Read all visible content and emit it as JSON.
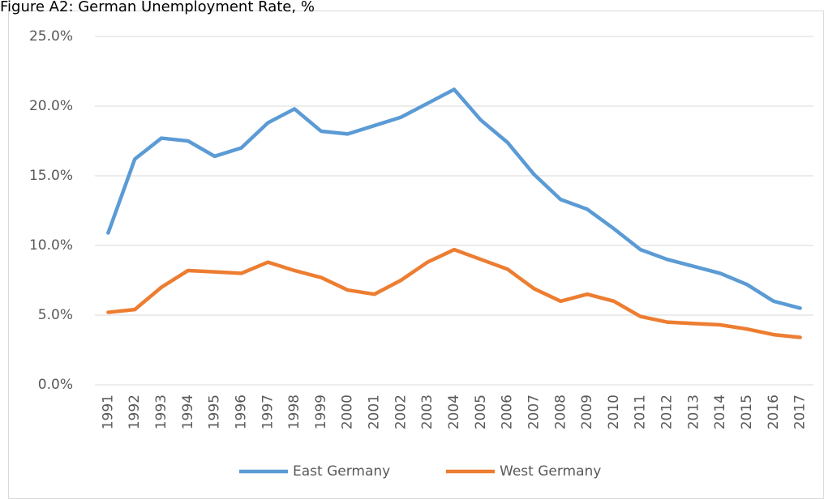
{
  "chart_data": {
    "type": "line",
    "title": "Figure A2: German Unemployment Rate, %",
    "categories": [
      "1991",
      "1992",
      "1993",
      "1994",
      "1995",
      "1996",
      "1997",
      "1998",
      "1999",
      "2000",
      "2001",
      "2002",
      "2003",
      "2004",
      "2005",
      "2006",
      "2007",
      "2008",
      "2009",
      "2010",
      "2011",
      "2012",
      "2013",
      "2014",
      "2015",
      "2016",
      "2017"
    ],
    "series": [
      {
        "name": "East Germany",
        "color": "#5b9bd5",
        "values": [
          10.9,
          16.2,
          17.7,
          17.5,
          16.4,
          17.0,
          18.8,
          19.8,
          18.2,
          18.0,
          18.6,
          19.2,
          20.2,
          21.2,
          19.0,
          17.4,
          15.1,
          13.3,
          12.6,
          11.2,
          9.7,
          9.0,
          8.5,
          8.0,
          7.2,
          6.0,
          5.5
        ]
      },
      {
        "name": "West Germany",
        "color": "#ed7d31",
        "values": [
          5.2,
          5.4,
          7.0,
          8.2,
          8.1,
          8.0,
          8.8,
          8.2,
          7.7,
          6.8,
          6.5,
          7.5,
          8.8,
          9.7,
          9.0,
          8.3,
          6.9,
          6.0,
          6.5,
          6.0,
          4.9,
          4.5,
          4.4,
          4.3,
          4.0,
          3.6,
          3.4
        ]
      }
    ],
    "ylim": [
      0,
      25
    ],
    "yticks": [
      {
        "value": 0,
        "label": "0.0%"
      },
      {
        "value": 5,
        "label": "5.0%"
      },
      {
        "value": 10,
        "label": "10.0%"
      },
      {
        "value": 15,
        "label": "15.0%"
      },
      {
        "value": 20,
        "label": "20.0%"
      },
      {
        "value": 25,
        "label": "25.0%"
      }
    ],
    "grid": true,
    "legend": "bottom"
  }
}
